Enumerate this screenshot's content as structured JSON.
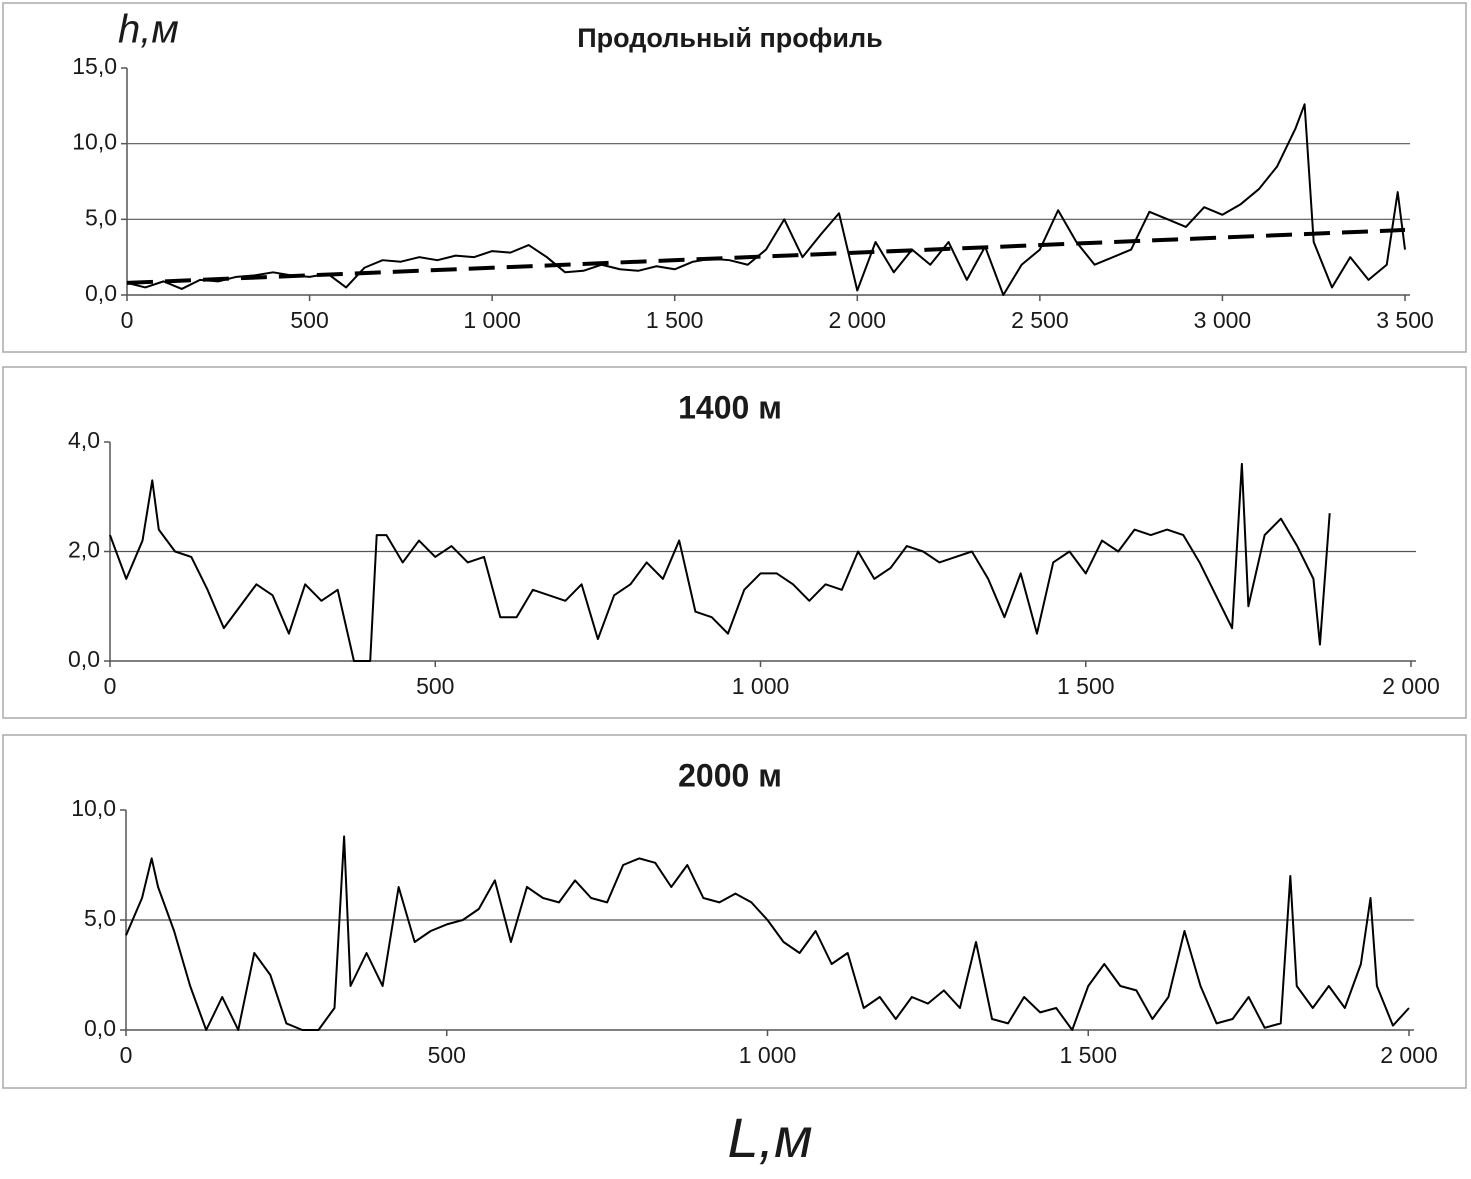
{
  "y_label": "h,м",
  "x_label": "L,м",
  "chart_data": [
    {
      "type": "line",
      "title": "Продольный профиль",
      "series": [
        {
          "color": "#000000",
          "x": [
            0,
            50,
            100,
            150,
            200,
            250,
            300,
            350,
            400,
            450,
            500,
            550,
            600,
            650,
            700,
            750,
            800,
            850,
            900,
            950,
            1000,
            1050,
            1100,
            1150,
            1200,
            1250,
            1300,
            1350,
            1400,
            1450,
            1500,
            1550,
            1600,
            1650,
            1700,
            1750,
            1800,
            1850,
            1900,
            1950,
            2000,
            2050,
            2100,
            2150,
            2200,
            2250,
            2300,
            2350,
            2400,
            2450,
            2500,
            2550,
            2600,
            2650,
            2700,
            2750,
            2800,
            2850,
            2900,
            2950,
            3000,
            3050,
            3100,
            3150,
            3200,
            3225,
            3250,
            3300,
            3350,
            3400,
            3450,
            3480,
            3500
          ],
          "values": [
            0.8,
            0.5,
            0.9,
            0.4,
            1.0,
            0.9,
            1.2,
            1.3,
            1.5,
            1.3,
            1.2,
            1.4,
            0.5,
            1.8,
            2.3,
            2.2,
            2.5,
            2.3,
            2.6,
            2.5,
            2.9,
            2.8,
            3.3,
            2.5,
            1.5,
            1.6,
            2.0,
            1.7,
            1.6,
            1.9,
            1.7,
            2.2,
            2.4,
            2.3,
            2.0,
            3.0,
            5.0,
            2.5,
            4.0,
            5.4,
            0.3,
            3.5,
            1.5,
            3.0,
            2.0,
            3.5,
            1.0,
            3.2,
            0.0,
            2.0,
            3.0,
            5.6,
            3.5,
            2.0,
            2.5,
            3.0,
            5.5,
            5.0,
            4.5,
            5.8,
            5.3,
            6.0,
            7.0,
            8.5,
            11.0,
            12.6,
            3.5,
            0.5,
            2.5,
            1.0,
            2.0,
            6.8,
            3.0
          ]
        },
        {
          "color": "#000000",
          "dash": true,
          "x": [
            0,
            3500
          ],
          "values": [
            0.8,
            4.3
          ]
        }
      ],
      "xlim": [
        0,
        3500
      ],
      "ylim": [
        0,
        15
      ],
      "xticks": [
        0,
        500,
        {
          "value": 1000,
          "label": "1 000"
        },
        {
          "value": 1500,
          "label": "1 500"
        },
        {
          "value": 2000,
          "label": "2 000"
        },
        {
          "value": 2500,
          "label": "2 500"
        },
        {
          "value": 3000,
          "label": "3 000"
        },
        {
          "value": 3500,
          "label": "3 500"
        }
      ],
      "yticks": [
        {
          "value": 0,
          "label": "0,0"
        },
        {
          "value": 5,
          "label": "5,0"
        },
        {
          "value": 10,
          "label": "10,0"
        },
        {
          "value": 15,
          "label": "15,0"
        }
      ],
      "grid": true
    },
    {
      "type": "line",
      "title": "1400 м",
      "series": [
        {
          "color": "#000000",
          "x": [
            0,
            25,
            50,
            65,
            75,
            100,
            125,
            150,
            175,
            200,
            225,
            250,
            275,
            300,
            325,
            350,
            375,
            400,
            410,
            425,
            450,
            475,
            500,
            525,
            550,
            575,
            600,
            625,
            650,
            675,
            700,
            725,
            750,
            775,
            800,
            825,
            850,
            875,
            900,
            925,
            950,
            975,
            1000,
            1025,
            1050,
            1075,
            1100,
            1125,
            1150,
            1175,
            1200,
            1225,
            1250,
            1275,
            1300,
            1325,
            1350,
            1375,
            1400,
            1425,
            1450,
            1475,
            1500,
            1525,
            1550,
            1575,
            1600,
            1625,
            1650,
            1675,
            1700,
            1725,
            1740,
            1750,
            1775,
            1800,
            1825,
            1850,
            1860,
            1875
          ],
          "values": [
            2.3,
            1.5,
            2.2,
            3.3,
            2.4,
            2.0,
            1.9,
            1.3,
            0.6,
            1.0,
            1.4,
            1.2,
            0.5,
            1.4,
            1.1,
            1.3,
            0.0,
            0.0,
            2.3,
            2.3,
            1.8,
            2.2,
            1.9,
            2.1,
            1.8,
            1.9,
            0.8,
            0.8,
            1.3,
            1.2,
            1.1,
            1.4,
            0.4,
            1.2,
            1.4,
            1.8,
            1.5,
            2.2,
            0.9,
            0.8,
            0.5,
            1.3,
            1.6,
            1.6,
            1.4,
            1.1,
            1.4,
            1.3,
            2.0,
            1.5,
            1.7,
            2.1,
            2.0,
            1.8,
            1.9,
            2.0,
            1.5,
            0.8,
            1.6,
            0.5,
            1.8,
            2.0,
            1.6,
            2.2,
            2.0,
            2.4,
            2.3,
            2.4,
            2.3,
            1.8,
            1.2,
            0.6,
            3.6,
            1.0,
            2.3,
            2.6,
            2.1,
            1.5,
            0.3,
            2.7
          ]
        }
      ],
      "xlim": [
        0,
        2000
      ],
      "ylim": [
        0,
        4
      ],
      "xticks": [
        0,
        500,
        {
          "value": 1000,
          "label": "1 000"
        },
        {
          "value": 1500,
          "label": "1 500"
        },
        {
          "value": 2000,
          "label": "2 000"
        }
      ],
      "yticks": [
        {
          "value": 0,
          "label": "0,0"
        },
        {
          "value": 2,
          "label": "2,0"
        },
        {
          "value": 4,
          "label": "4,0"
        }
      ],
      "grid": true
    },
    {
      "type": "line",
      "title": "2000 м",
      "series": [
        {
          "color": "#000000",
          "x": [
            0,
            25,
            40,
            50,
            75,
            100,
            125,
            150,
            175,
            200,
            225,
            250,
            275,
            300,
            325,
            340,
            350,
            375,
            400,
            425,
            450,
            475,
            500,
            525,
            550,
            575,
            600,
            625,
            650,
            675,
            700,
            725,
            750,
            775,
            800,
            825,
            850,
            875,
            900,
            925,
            950,
            975,
            1000,
            1025,
            1050,
            1075,
            1100,
            1125,
            1150,
            1175,
            1200,
            1225,
            1250,
            1275,
            1300,
            1325,
            1350,
            1375,
            1400,
            1425,
            1450,
            1475,
            1500,
            1525,
            1550,
            1575,
            1600,
            1625,
            1650,
            1675,
            1700,
            1725,
            1750,
            1775,
            1800,
            1815,
            1825,
            1850,
            1875,
            1900,
            1925,
            1940,
            1950,
            1975,
            2000
          ],
          "values": [
            4.3,
            6.0,
            7.8,
            6.5,
            4.5,
            2.0,
            0.0,
            1.5,
            0.0,
            3.5,
            2.5,
            0.3,
            0.0,
            0.0,
            1.0,
            8.8,
            2.0,
            3.5,
            2.0,
            6.5,
            4.0,
            4.5,
            4.8,
            5.0,
            5.5,
            6.8,
            4.0,
            6.5,
            6.0,
            5.8,
            6.8,
            6.0,
            5.8,
            7.5,
            7.8,
            7.6,
            6.5,
            7.5,
            6.0,
            5.8,
            6.2,
            5.8,
            5.0,
            4.0,
            3.5,
            4.5,
            3.0,
            3.5,
            1.0,
            1.5,
            0.5,
            1.5,
            1.2,
            1.8,
            1.0,
            4.0,
            0.5,
            0.3,
            1.5,
            0.8,
            1.0,
            0.0,
            2.0,
            3.0,
            2.0,
            1.8,
            0.5,
            1.5,
            4.5,
            2.0,
            0.3,
            0.5,
            1.5,
            0.1,
            0.3,
            7.0,
            2.0,
            1.0,
            2.0,
            1.0,
            3.0,
            6.0,
            2.0,
            0.2,
            1.0
          ]
        }
      ],
      "xlim": [
        0,
        2000
      ],
      "ylim": [
        0,
        10
      ],
      "xticks": [
        0,
        500,
        {
          "value": 1000,
          "label": "1 000"
        },
        {
          "value": 1500,
          "label": "1 500"
        },
        {
          "value": 2000,
          "label": "2 000"
        }
      ],
      "yticks": [
        {
          "value": 0,
          "label": "0,0"
        },
        {
          "value": 5,
          "label": "5,0"
        },
        {
          "value": 10,
          "label": "10,0"
        }
      ],
      "grid": true
    }
  ]
}
